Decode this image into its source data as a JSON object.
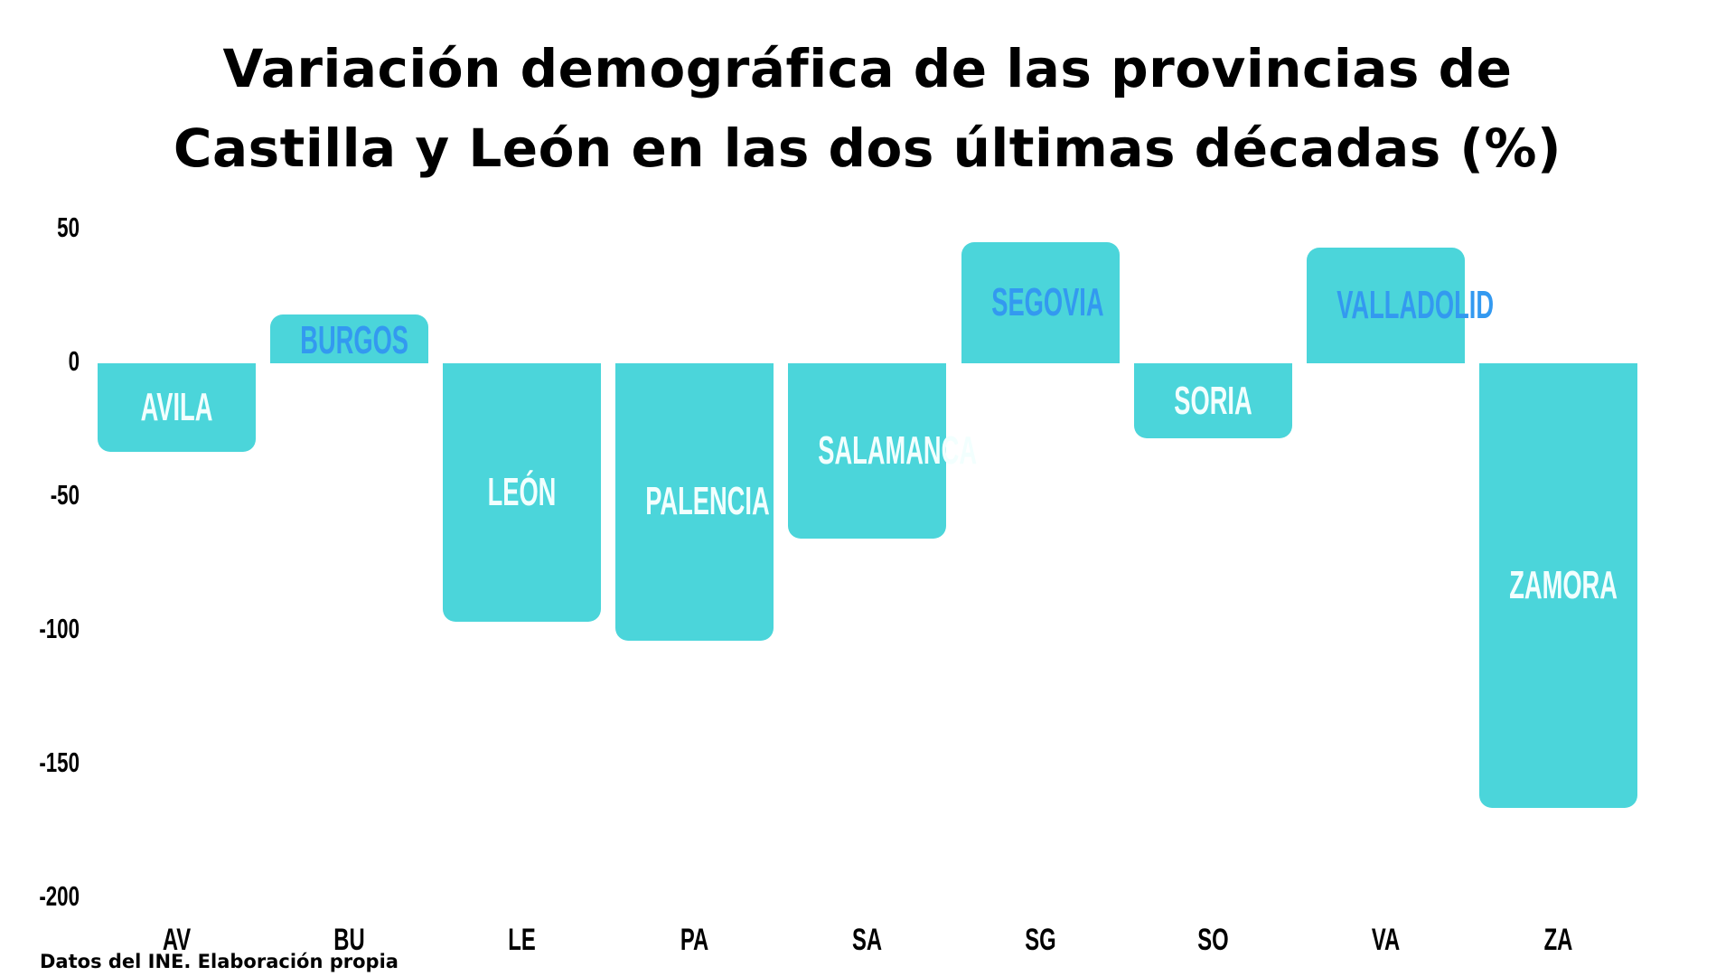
{
  "title_line1": "Variación demográfica de las provincias de",
  "title_line2": "Castilla y León en las dos últimas décadas (%)",
  "source": "Datos del INE. Elaboración propia",
  "colors": {
    "bar": "#4bd5da",
    "label_light": "#f2fffe",
    "label_dark": "#3399f0"
  },
  "y_ticks": [
    "50",
    "0",
    "-50",
    "-100",
    "-150",
    "-200"
  ],
  "chart_data": {
    "type": "bar",
    "title": "Variación demográfica de las provincias de Castilla y León en las dos últimas décadas (%)",
    "xlabel": "",
    "ylabel": "",
    "ylim": [
      -200,
      50
    ],
    "y_ticks": [
      50,
      0,
      -50,
      -100,
      -150,
      -200
    ],
    "grid": false,
    "legend": "none",
    "categories": [
      "AV",
      "BU",
      "LE",
      "PA",
      "SA",
      "SG",
      "SO",
      "VA",
      "ZA"
    ],
    "bar_labels": [
      "AVILA",
      "BURGOS",
      "LEÓN",
      "PALENCIA",
      "SALAMANCA",
      "SEGOVIA",
      "SORIA",
      "VALLADOLID",
      "ZAMORA"
    ],
    "values": [
      -33,
      18,
      -96,
      -103,
      -65,
      45,
      -28,
      43,
      -165
    ],
    "annotations": "Source: Datos del INE. Elaboración propia"
  },
  "bars": [
    {
      "code": "AV",
      "label": "AVILA",
      "value": -33
    },
    {
      "code": "BU",
      "label": "BURGOS",
      "value": 18
    },
    {
      "code": "LE",
      "label": "LEÓN",
      "value": -96
    },
    {
      "code": "PA",
      "label": "PALENCIA",
      "value": -103
    },
    {
      "code": "SA",
      "label": "SALAMANCA",
      "value": -65
    },
    {
      "code": "SG",
      "label": "SEGOVIA",
      "value": 45
    },
    {
      "code": "SO",
      "label": "SORIA",
      "value": -28
    },
    {
      "code": "VA",
      "label": "VALLADOLID",
      "value": 43
    },
    {
      "code": "ZA",
      "label": "ZAMORA",
      "value": -165
    }
  ]
}
